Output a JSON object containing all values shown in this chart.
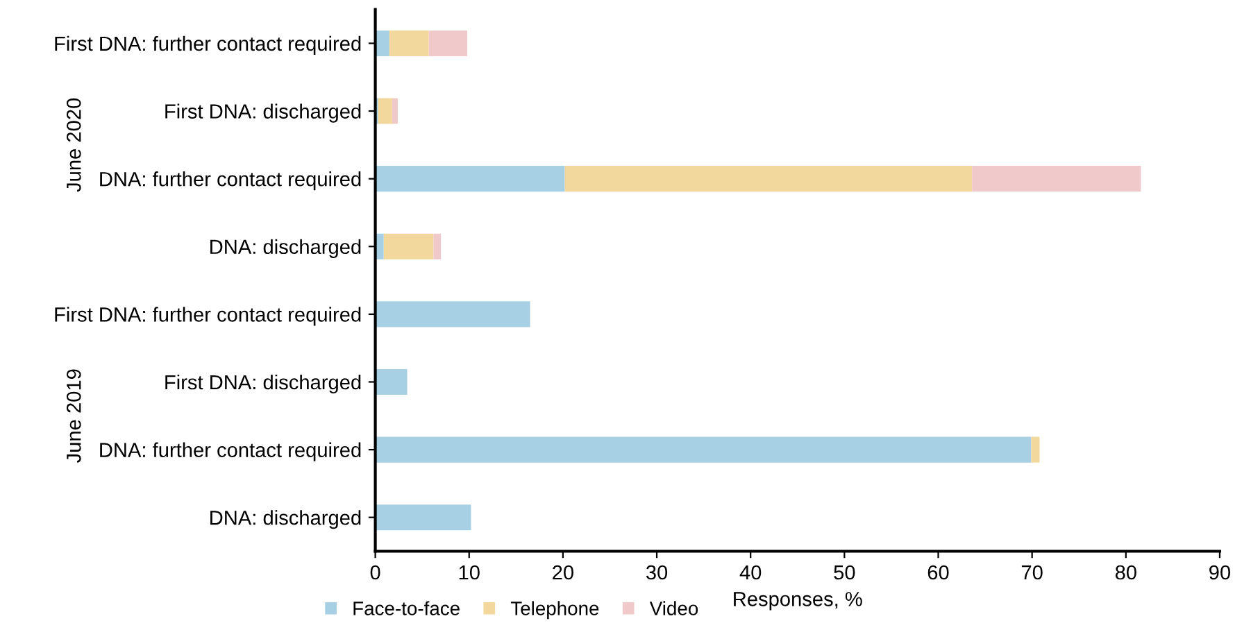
{
  "chart_data": {
    "type": "bar",
    "orientation": "horizontal",
    "stacked": true,
    "xlabel": "Responses, %",
    "categories": [
      "First DNA: further contact required",
      "First DNA: discharged",
      "DNA: further contact required",
      "DNA: discharged",
      "First DNA: further contact required",
      "First DNA: discharged",
      "DNA: further contact required",
      "DNA: discharged"
    ],
    "series": [
      {
        "name": "Face-to-face",
        "color": "#a8d0e4",
        "values": [
          1.5,
          0.3,
          20.2,
          0.9,
          16.5,
          3.4,
          69.9,
          10.2
        ]
      },
      {
        "name": "Telephone",
        "color": "#f2d89c",
        "values": [
          4.2,
          1.5,
          43.4,
          5.3,
          0,
          0,
          0.9,
          0
        ]
      },
      {
        "name": "Video",
        "color": "#f0c9cb",
        "values": [
          4.1,
          0.6,
          18.0,
          0.8,
          0,
          0,
          0,
          0
        ]
      }
    ],
    "annotations": [
      "June 2020",
      "June 2019"
    ],
    "xlim": [
      0,
      90
    ],
    "xticks": [
      0,
      10,
      20,
      30,
      40,
      50,
      60,
      70,
      80,
      90
    ],
    "grid": false,
    "legend": "bottom left"
  }
}
